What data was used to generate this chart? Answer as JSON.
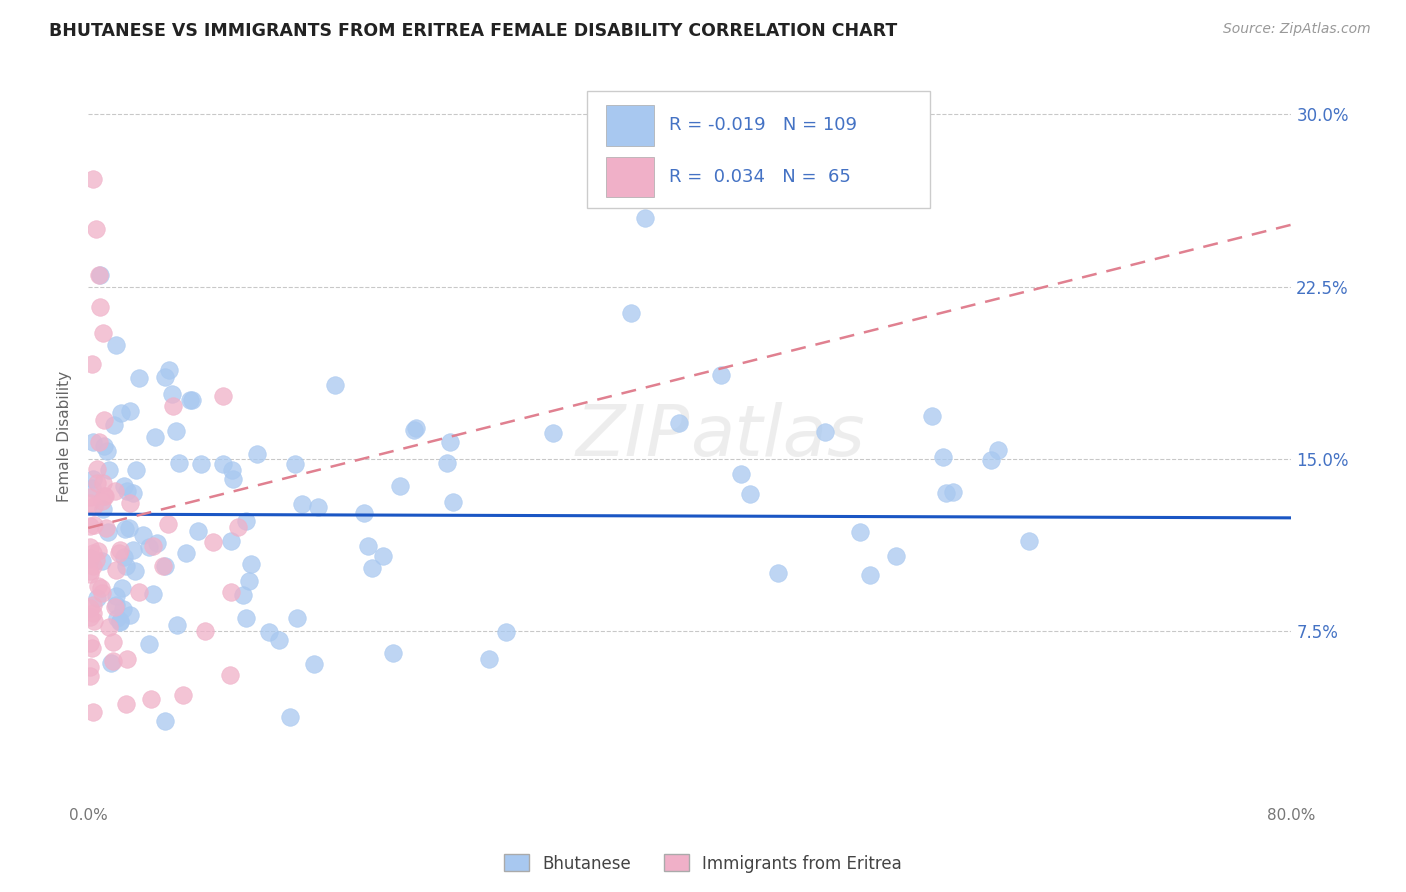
{
  "title": "BHUTANESE VS IMMIGRANTS FROM ERITREA FEMALE DISABILITY CORRELATION CHART",
  "source": "Source: ZipAtlas.com",
  "ylabel": "Female Disability",
  "yticks": [
    "7.5%",
    "15.0%",
    "22.5%",
    "30.0%"
  ],
  "ytick_vals": [
    0.075,
    0.15,
    0.225,
    0.3
  ],
  "xmin": 0.0,
  "xmax": 0.8,
  "ymin": 0.0,
  "ymax": 0.32,
  "bhutanese_color": "#a8c8f0",
  "eritrea_color": "#f0b0c8",
  "bhutanese_line_color": "#1a56c4",
  "eritrea_line_color": "#e08090",
  "legend_text_color": "#4472c4",
  "R_bhutanese": -0.019,
  "N_bhutanese": 109,
  "R_eritrea": 0.034,
  "N_eritrea": 65,
  "watermark": "ZIPatlas",
  "b_intercept": 0.127,
  "b_slope": -0.003,
  "e_intercept": 0.105,
  "e_slope": 0.22
}
